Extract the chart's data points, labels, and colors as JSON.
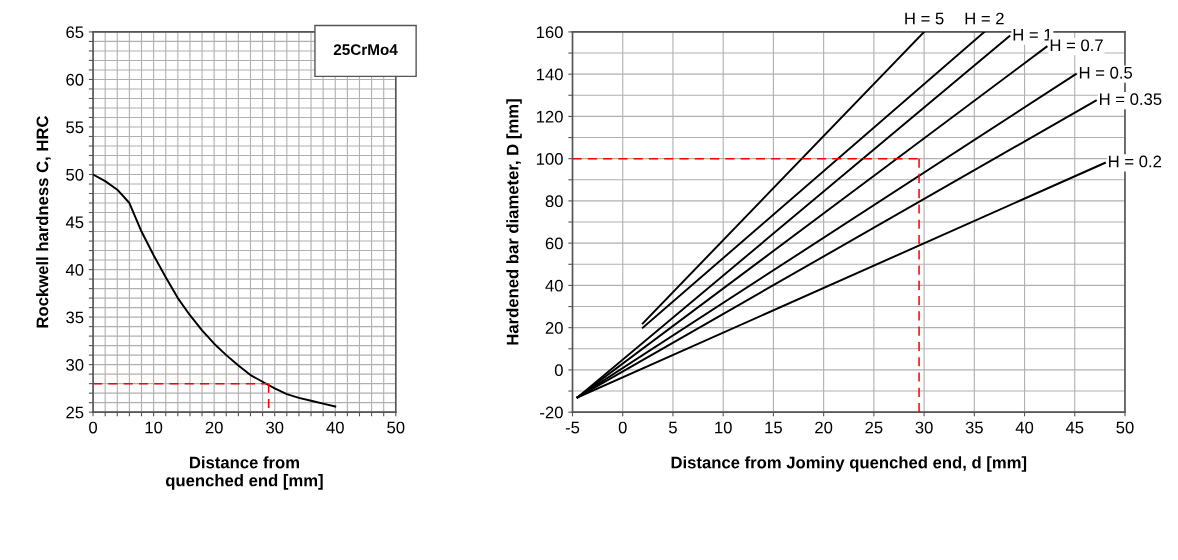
{
  "chart_data": [
    {
      "type": "line",
      "xlabel": "Distance from\nquenched end [mm]",
      "ylabel": "Rockwell hardness C, HRC",
      "xlim": [
        0,
        50
      ],
      "ylim": [
        25,
        65
      ],
      "xticks": [
        0,
        {
          "value": 2,
          "label": null
        },
        {
          "value": 4,
          "label": null
        },
        {
          "value": 6,
          "label": null
        },
        {
          "value": 8,
          "label": null
        },
        10,
        {
          "value": 12,
          "label": null
        },
        {
          "value": 14,
          "label": null
        },
        {
          "value": 16,
          "label": null
        },
        {
          "value": 18,
          "label": null
        },
        20,
        {
          "value": 22,
          "label": null
        },
        {
          "value": 24,
          "label": null
        },
        {
          "value": 26,
          "label": null
        },
        {
          "value": 28,
          "label": null
        },
        30,
        {
          "value": 32,
          "label": null
        },
        {
          "value": 34,
          "label": null
        },
        {
          "value": 36,
          "label": null
        },
        {
          "value": 38,
          "label": null
        },
        40,
        {
          "value": 42,
          "label": null
        },
        {
          "value": 44,
          "label": null
        },
        {
          "value": 46,
          "label": null
        },
        {
          "value": 48,
          "label": null
        },
        50
      ],
      "yticks": [
        25,
        {
          "value": 26,
          "label": null
        },
        {
          "value": 27,
          "label": null
        },
        {
          "value": 28,
          "label": null
        },
        {
          "value": 29,
          "label": null
        },
        30,
        {
          "value": 31,
          "label": null
        },
        {
          "value": 32,
          "label": null
        },
        {
          "value": 33,
          "label": null
        },
        {
          "value": 34,
          "label": null
        },
        35,
        {
          "value": 36,
          "label": null
        },
        {
          "value": 37,
          "label": null
        },
        {
          "value": 38,
          "label": null
        },
        {
          "value": 39,
          "label": null
        },
        40,
        {
          "value": 41,
          "label": null
        },
        {
          "value": 42,
          "label": null
        },
        {
          "value": 43,
          "label": null
        },
        {
          "value": 44,
          "label": null
        },
        45,
        {
          "value": 46,
          "label": null
        },
        {
          "value": 47,
          "label": null
        },
        {
          "value": 48,
          "label": null
        },
        {
          "value": 49,
          "label": null
        },
        50,
        {
          "value": 51,
          "label": null
        },
        {
          "value": 52,
          "label": null
        },
        {
          "value": 53,
          "label": null
        },
        {
          "value": 54,
          "label": null
        },
        55,
        {
          "value": 56,
          "label": null
        },
        {
          "value": 57,
          "label": null
        },
        {
          "value": 58,
          "label": null
        },
        {
          "value": 59,
          "label": null
        },
        60,
        {
          "value": 61,
          "label": null
        },
        {
          "value": 62,
          "label": null
        },
        {
          "value": 63,
          "label": null
        },
        {
          "value": 64,
          "label": null
        },
        65
      ],
      "grid": true,
      "annotations": [
        "25CrMo4"
      ],
      "series": [
        {
          "color": "#000000",
          "line_style": "solid",
          "x": [
            0,
            2,
            4,
            6,
            8,
            10,
            12,
            14,
            16,
            18,
            20,
            22,
            24,
            26,
            28,
            30,
            32,
            34,
            36,
            38,
            40
          ],
          "values": [
            50,
            49.3,
            48.4,
            47,
            44,
            41.5,
            39.2,
            37,
            35.2,
            33.6,
            32.2,
            31,
            29.9,
            28.9,
            28.2,
            27.5,
            26.9,
            26.5,
            26.2,
            25.9,
            25.6
          ]
        },
        {
          "color": "#ff0000",
          "line_style": "dashed",
          "x": [
            0,
            29
          ],
          "values": [
            28,
            28
          ]
        },
        {
          "color": "#ff0000",
          "line_style": "dashed",
          "x": [
            29,
            29
          ],
          "values": [
            28,
            25.4
          ]
        }
      ]
    },
    {
      "type": "line",
      "xlabel": "Distance from Jominy quenched end, d [mm]",
      "ylabel": "Hardened bar diameter, D [mm]",
      "xlim": [
        -5,
        50
      ],
      "ylim": [
        -20,
        160
      ],
      "xticks": [
        -5,
        0,
        5,
        10,
        15,
        20,
        25,
        30,
        35,
        40,
        45,
        50
      ],
      "yticks": [
        -20,
        {
          "value": -10,
          "label": null
        },
        0,
        {
          "value": 10,
          "label": null
        },
        20,
        {
          "value": 30,
          "label": null
        },
        40,
        {
          "value": 50,
          "label": null
        },
        60,
        {
          "value": 70,
          "label": null
        },
        80,
        {
          "value": 90,
          "label": null
        },
        100,
        {
          "value": 110,
          "label": null
        },
        120,
        {
          "value": 130,
          "label": null
        },
        140,
        {
          "value": 150,
          "label": null
        },
        160
      ],
      "grid": true,
      "annotations": [
        {
          "text": "H = 5",
          "x": 30,
          "y": 160
        },
        {
          "text": "H = 2",
          "x": 36,
          "y": 160
        },
        {
          "text": "H = 1",
          "x": 38.5,
          "y": 158
        },
        {
          "text": "H = 0.7",
          "x": 42.2,
          "y": 153
        },
        {
          "text": "H = 0.5",
          "x": 45.1,
          "y": 140
        },
        {
          "text": "H = 0.35",
          "x": 47.1,
          "y": 127.5
        },
        {
          "text": "H = 0.2",
          "x": 48,
          "y": 98
        }
      ],
      "series": [
        {
          "color": "#000000",
          "line_style": "solid",
          "x": [
            2,
            30
          ],
          "values": [
            22,
            160
          ]
        },
        {
          "color": "#000000",
          "line_style": "solid",
          "x": [
            2,
            36
          ],
          "values": [
            20,
            160
          ]
        },
        {
          "color": "#000000",
          "line_style": "solid",
          "x": [
            -4.5,
            38.5
          ],
          "values": [
            -13,
            158
          ]
        },
        {
          "color": "#000000",
          "line_style": "solid",
          "x": [
            -4.5,
            42.2
          ],
          "values": [
            -13,
            153
          ]
        },
        {
          "color": "#000000",
          "line_style": "solid",
          "x": [
            -4.5,
            45.1
          ],
          "values": [
            -13,
            140
          ]
        },
        {
          "color": "#000000",
          "line_style": "solid",
          "x": [
            -4.5,
            47.1
          ],
          "values": [
            -13,
            127.5
          ]
        },
        {
          "color": "#000000",
          "line_style": "solid",
          "x": [
            -4.5,
            48
          ],
          "values": [
            -13,
            98
          ]
        },
        {
          "color": "#ff0000",
          "line_style": "dashed",
          "x": [
            -5,
            29.5
          ],
          "values": [
            100,
            100
          ]
        },
        {
          "color": "#ff0000",
          "line_style": "dashed",
          "x": [
            29.5,
            29.5
          ],
          "values": [
            -20,
            100
          ]
        }
      ]
    }
  ]
}
